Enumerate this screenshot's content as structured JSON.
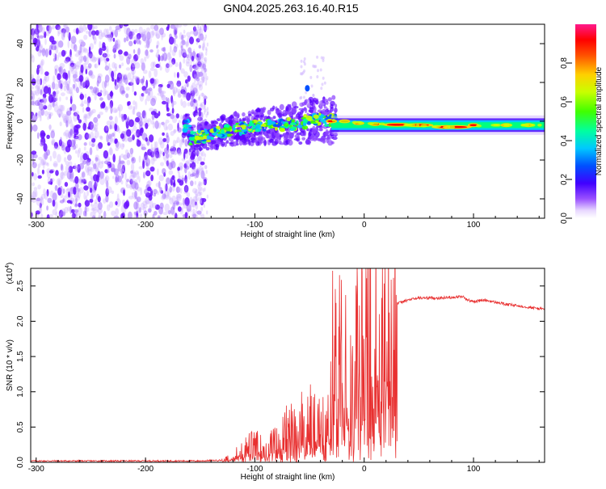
{
  "figure_title": "GN04.2025.263.16.40.R15",
  "colorbar": {
    "label": "Normalized spectral amplitude",
    "tick_labels": [
      "0.0",
      "0.2",
      "0.4",
      "0.6",
      "0.8"
    ],
    "tick_values": [
      0.0,
      0.2,
      0.4,
      0.6,
      0.8
    ],
    "range": [
      0,
      1
    ],
    "colors": [
      "#ffffff",
      "#7a00ff",
      "#0000ff",
      "#00d0ff",
      "#00ff60",
      "#c0ff00",
      "#ffee00",
      "#ff8000",
      "#ff0000",
      "#ff1a8c"
    ]
  },
  "chart_data": [
    {
      "type": "heatmap",
      "title": "GN04.2025.263.16.40.R15",
      "xlabel": "Height of straight line (km)",
      "ylabel": "Frequency (Hz)",
      "xlim": [
        -305,
        165
      ],
      "ylim": [
        -50,
        50
      ],
      "x_ticks": [
        -300,
        -200,
        -100,
        0,
        100
      ],
      "x_tick_labels": [
        "-300",
        "-200",
        "-100",
        "0",
        "100"
      ],
      "y_ticks": [
        -40,
        -20,
        0,
        20,
        40
      ],
      "y_tick_labels": [
        "-40",
        "-20",
        "0",
        "20",
        "40"
      ],
      "description_ridge": [
        {
          "x": -160,
          "f": -9
        },
        {
          "x": -140,
          "f": -7
        },
        {
          "x": -120,
          "f": -4
        },
        {
          "x": -100,
          "f": -3
        },
        {
          "x": -80,
          "f": -2
        },
        {
          "x": -60,
          "f": -1
        },
        {
          "x": -40,
          "f": 1
        },
        {
          "x": -20,
          "f": 0
        },
        {
          "x": 0,
          "f": -1
        },
        {
          "x": 40,
          "f": -2
        },
        {
          "x": 80,
          "f": -3
        },
        {
          "x": 120,
          "f": -2
        },
        {
          "x": 165,
          "f": -2
        }
      ]
    },
    {
      "type": "line",
      "xlabel": "Height of straight line (km)",
      "ylabel": "SNR (10 * v/v)",
      "y_scale_label": "(x10",
      "y_scale_exp": "4",
      "xlim": [
        -305,
        165
      ],
      "ylim": [
        0,
        2.75
      ],
      "x_ticks": [
        -300,
        -200,
        -100,
        0,
        100
      ],
      "x_tick_labels": [
        "-300",
        "-200",
        "-100",
        "0",
        "100"
      ],
      "y_ticks": [
        0.0,
        0.5,
        1.0,
        1.5,
        2.0,
        2.5
      ],
      "y_tick_labels": [
        "0.0",
        "0.5",
        "1.0",
        "1.5",
        "2.0",
        "2.5"
      ],
      "color": "#e83030",
      "series": [
        {
          "name": "SNR",
          "x": [
            -305,
            -250,
            -200,
            -150,
            -130,
            -120,
            -110,
            -100,
            -90,
            -80,
            -70,
            -60,
            -50,
            -40,
            -35,
            -30,
            -25,
            -20,
            -15,
            -10,
            -5,
            0,
            10,
            20,
            30,
            40,
            50,
            60,
            70,
            80,
            90,
            95,
            100,
            110,
            120,
            130,
            140,
            150,
            165
          ],
          "y": [
            0.02,
            0.02,
            0.02,
            0.02,
            0.03,
            0.1,
            0.2,
            0.25,
            0.2,
            0.3,
            0.45,
            0.55,
            0.6,
            0.5,
            0.55,
            0.8,
            1.1,
            1.3,
            1.2,
            1.4,
            1.6,
            1.7,
            1.9,
            2.1,
            2.25,
            2.3,
            2.33,
            2.33,
            2.33,
            2.34,
            2.35,
            2.3,
            2.28,
            2.3,
            2.27,
            2.24,
            2.22,
            2.2,
            2.17
          ]
        }
      ]
    }
  ]
}
